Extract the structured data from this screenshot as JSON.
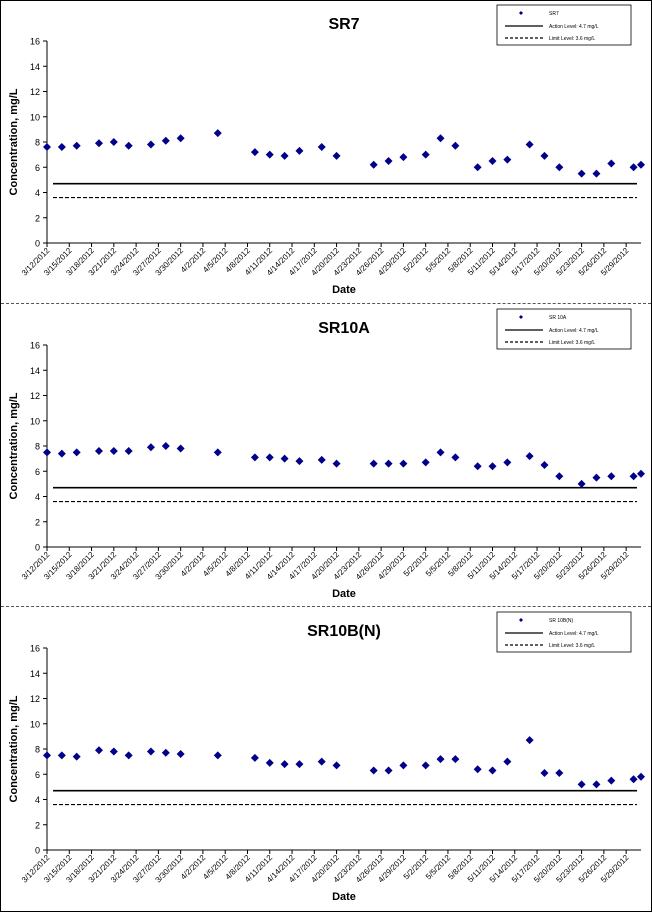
{
  "charts_meta": {
    "xlabel": "Date",
    "ylabel": "Concentration, mg/L",
    "legend_placement": "top-right",
    "marker_color": "#00008B",
    "line_color": "#000000"
  },
  "chart_data": [
    {
      "type": "scatter",
      "title": "SR7",
      "xlabel": "Date",
      "ylabel": "Concentration, mg/L",
      "ylim": [
        0,
        16
      ],
      "yticks": [
        0,
        2,
        4,
        6,
        8,
        10,
        12,
        14,
        16
      ],
      "xticks": [
        "3/12/2012",
        "3/15/2012",
        "3/18/2012",
        "3/21/2012",
        "3/24/2012",
        "3/27/2012",
        "3/30/2012",
        "4/2/2012",
        "4/5/2012",
        "4/8/2012",
        "4/11/2012",
        "4/14/2012",
        "4/17/2012",
        "4/20/2012",
        "4/23/2012",
        "4/26/2012",
        "4/29/2012",
        "5/2/2012",
        "5/5/2012",
        "5/8/2012",
        "5/11/2012",
        "5/14/2012",
        "5/17/2012",
        "5/20/2012",
        "5/23/2012",
        "5/26/2012",
        "5/29/2012"
      ],
      "xlim": [
        "3/12/2012",
        "5/31/2012"
      ],
      "series": [
        {
          "name": "SR7",
          "x": [
            "3/12/2012",
            "3/14/2012",
            "3/16/2012",
            "3/19/2012",
            "3/21/2012",
            "3/23/2012",
            "3/26/2012",
            "3/28/2012",
            "3/30/2012",
            "4/4/2012",
            "4/9/2012",
            "4/11/2012",
            "4/13/2012",
            "4/15/2012",
            "4/18/2012",
            "4/20/2012",
            "4/25/2012",
            "4/27/2012",
            "4/29/2012",
            "5/2/2012",
            "5/4/2012",
            "5/6/2012",
            "5/9/2012",
            "5/11/2012",
            "5/13/2012",
            "5/16/2012",
            "5/18/2012",
            "5/20/2012",
            "5/23/2012",
            "5/25/2012",
            "5/27/2012",
            "5/30/2012",
            "5/31/2012"
          ],
          "y": [
            7.6,
            7.6,
            7.7,
            7.9,
            8.0,
            7.7,
            7.8,
            8.1,
            8.3,
            8.7,
            7.2,
            7.0,
            6.9,
            7.3,
            7.6,
            6.9,
            6.2,
            6.5,
            6.8,
            7.0,
            8.3,
            7.7,
            6.0,
            6.5,
            6.6,
            7.8,
            6.9,
            6.0,
            5.5,
            5.5,
            6.3,
            6.0,
            6.2
          ]
        }
      ],
      "reference_lines": [
        {
          "name": "Action Level: 4.7 mg/L",
          "y": 4.7,
          "style": "solid"
        },
        {
          "name": "Limit Level: 3.6 mg/L",
          "y": 3.6,
          "style": "dashed"
        }
      ]
    },
    {
      "type": "scatter",
      "title": "SR10A",
      "xlabel": "Date",
      "ylabel": "Concentration, mg/L",
      "ylim": [
        0,
        16
      ],
      "yticks": [
        0,
        2,
        4,
        6,
        8,
        10,
        12,
        14,
        16
      ],
      "xticks": [
        "3/12/2012",
        "3/15/2012",
        "3/18/2012",
        "3/21/2012",
        "3/24/2012",
        "3/27/2012",
        "3/30/2012",
        "4/2/2012",
        "4/5/2012",
        "4/8/2012",
        "4/11/2012",
        "4/14/2012",
        "4/17/2012",
        "4/20/2012",
        "4/23/2012",
        "4/26/2012",
        "4/29/2012",
        "5/2/2012",
        "5/5/2012",
        "5/8/2012",
        "5/11/2012",
        "5/14/2012",
        "5/17/2012",
        "5/20/2012",
        "5/23/2012",
        "5/26/2012",
        "5/29/2012"
      ],
      "xlim": [
        "3/12/2012",
        "5/31/2012"
      ],
      "series": [
        {
          "name": "SR 10A",
          "x": [
            "3/12/2012",
            "3/14/2012",
            "3/16/2012",
            "3/19/2012",
            "3/21/2012",
            "3/23/2012",
            "3/26/2012",
            "3/28/2012",
            "3/30/2012",
            "4/4/2012",
            "4/9/2012",
            "4/11/2012",
            "4/13/2012",
            "4/15/2012",
            "4/18/2012",
            "4/20/2012",
            "4/25/2012",
            "4/27/2012",
            "4/29/2012",
            "5/2/2012",
            "5/4/2012",
            "5/6/2012",
            "5/9/2012",
            "5/11/2012",
            "5/13/2012",
            "5/16/2012",
            "5/18/2012",
            "5/20/2012",
            "5/23/2012",
            "5/25/2012",
            "5/27/2012",
            "5/30/2012",
            "5/31/2012"
          ],
          "y": [
            7.5,
            7.4,
            7.5,
            7.6,
            7.6,
            7.6,
            7.9,
            8.0,
            7.8,
            7.5,
            7.1,
            7.1,
            7.0,
            6.8,
            6.9,
            6.6,
            6.6,
            6.6,
            6.6,
            6.7,
            7.5,
            7.1,
            6.4,
            6.4,
            6.7,
            7.2,
            6.5,
            5.6,
            5.0,
            5.5,
            5.6,
            5.6,
            5.8
          ]
        }
      ],
      "reference_lines": [
        {
          "name": "Action Level: 4.7 mg/L",
          "y": 4.7,
          "style": "solid"
        },
        {
          "name": "Limit Level: 3.6 mg/L",
          "y": 3.6,
          "style": "dashed"
        }
      ]
    },
    {
      "type": "scatter",
      "title": "SR10B(N)",
      "xlabel": "Date",
      "ylabel": "Concentration, mg/L",
      "ylim": [
        0,
        16
      ],
      "yticks": [
        0,
        2,
        4,
        6,
        8,
        10,
        12,
        14,
        16
      ],
      "xticks": [
        "3/12/2012",
        "3/15/2012",
        "3/18/2012",
        "3/21/2012",
        "3/24/2012",
        "3/27/2012",
        "3/30/2012",
        "4/2/2012",
        "4/5/2012",
        "4/8/2012",
        "4/11/2012",
        "4/14/2012",
        "4/17/2012",
        "4/20/2012",
        "4/23/2012",
        "4/26/2012",
        "4/29/2012",
        "5/2/2012",
        "5/5/2012",
        "5/8/2012",
        "5/11/2012",
        "5/14/2012",
        "5/17/2012",
        "5/20/2012",
        "5/23/2012",
        "5/26/2012",
        "5/29/2012"
      ],
      "xlim": [
        "3/12/2012",
        "5/31/2012"
      ],
      "series": [
        {
          "name": "SR 10B(N)",
          "x": [
            "3/12/2012",
            "3/14/2012",
            "3/16/2012",
            "3/19/2012",
            "3/21/2012",
            "3/23/2012",
            "3/26/2012",
            "3/28/2012",
            "3/30/2012",
            "4/4/2012",
            "4/9/2012",
            "4/11/2012",
            "4/13/2012",
            "4/15/2012",
            "4/18/2012",
            "4/20/2012",
            "4/25/2012",
            "4/27/2012",
            "4/29/2012",
            "5/2/2012",
            "5/4/2012",
            "5/6/2012",
            "5/9/2012",
            "5/11/2012",
            "5/13/2012",
            "5/16/2012",
            "5/18/2012",
            "5/20/2012",
            "5/23/2012",
            "5/25/2012",
            "5/27/2012",
            "5/30/2012",
            "5/31/2012"
          ],
          "y": [
            7.5,
            7.5,
            7.4,
            7.9,
            7.8,
            7.5,
            7.8,
            7.7,
            7.6,
            7.5,
            7.3,
            6.9,
            6.8,
            6.8,
            7.0,
            6.7,
            6.3,
            6.3,
            6.7,
            6.7,
            7.2,
            7.2,
            6.4,
            6.3,
            7.0,
            8.7,
            6.1,
            6.1,
            5.2,
            5.2,
            5.5,
            5.6,
            5.8
          ]
        }
      ],
      "reference_lines": [
        {
          "name": "Action Level: 4.7 mg/L",
          "y": 4.7,
          "style": "solid"
        },
        {
          "name": "Limit Level: 3.6 mg/L",
          "y": 3.6,
          "style": "dashed"
        }
      ]
    }
  ]
}
